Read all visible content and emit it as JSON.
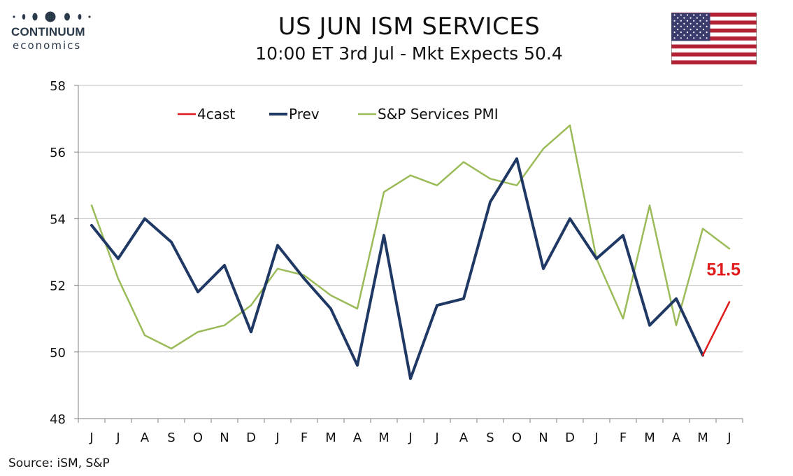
{
  "brand": {
    "name": "CONTINUUM",
    "sub": "economics"
  },
  "header": {
    "title": "US JUN ISM SERVICES",
    "subtitle": "10:00 ET 3rd Jul - Mkt Expects 50.4"
  },
  "flag_icon": "us-flag-icon",
  "source": "Source: iSM, S&P",
  "colors": {
    "forecast": "#e0191b",
    "prev": "#1f3864",
    "pmi": "#9bbb59",
    "grid": "#bfbfbf",
    "axis": "#808080"
  },
  "chart_data": {
    "type": "line",
    "categories": [
      "J",
      "J",
      "A",
      "S",
      "O",
      "N",
      "D",
      "J",
      "F",
      "M",
      "A",
      "M",
      "J",
      "J",
      "A",
      "S",
      "O",
      "N",
      "D",
      "J",
      "F",
      "M",
      "A",
      "M",
      "J"
    ],
    "ylim": [
      48,
      58
    ],
    "yticks": [
      "48",
      "50",
      "52",
      "54",
      "56",
      "58"
    ],
    "grid": true,
    "legend_position": "top-left",
    "series": [
      {
        "name": "4cast",
        "color": "#e0191b",
        "values": [
          null,
          null,
          null,
          null,
          null,
          null,
          null,
          null,
          null,
          null,
          null,
          null,
          null,
          null,
          null,
          null,
          null,
          null,
          null,
          null,
          null,
          null,
          null,
          49.9,
          51.5
        ]
      },
      {
        "name": "Prev",
        "color": "#1f3864",
        "values": [
          53.8,
          52.8,
          54.0,
          53.3,
          51.8,
          52.6,
          50.6,
          53.2,
          52.2,
          51.3,
          49.6,
          53.5,
          49.2,
          51.4,
          51.6,
          54.5,
          55.8,
          52.5,
          54.0,
          52.8,
          53.5,
          50.8,
          51.6,
          49.9,
          null
        ]
      },
      {
        "name": "S&P Services PMI",
        "color": "#9bbb59",
        "values": [
          54.4,
          52.2,
          50.5,
          50.1,
          50.6,
          50.8,
          51.4,
          52.5,
          52.3,
          51.7,
          51.3,
          54.8,
          55.3,
          55.0,
          55.7,
          55.2,
          55.0,
          56.1,
          56.8,
          52.8,
          51.0,
          54.4,
          50.8,
          53.7,
          53.1
        ]
      }
    ],
    "annotation": {
      "text": "51.5",
      "index": 24
    }
  }
}
